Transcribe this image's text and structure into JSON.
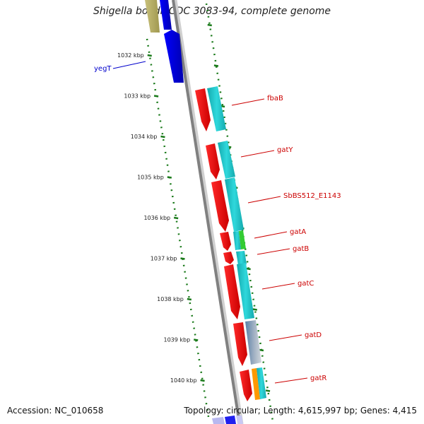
{
  "title": "Shigella boydii CDC 3083-94, complete genome",
  "footer": {
    "accession": "Accession: NC_010658",
    "summary": "Topology: circular; Length: 4,615,997 bp; Genes: 4,415"
  },
  "scale_labels": [
    "1032 kbp",
    "1033 kbp",
    "1034 kbp",
    "1035 kbp",
    "1036 kbp",
    "1037 kbp",
    "1038 kbp",
    "1039 kbp",
    "1040 kbp"
  ],
  "genes": [
    {
      "name": "yegT",
      "color": "#0000cc"
    },
    {
      "name": "fbaB",
      "color": "#cc0000"
    },
    {
      "name": "gatY",
      "color": "#cc0000"
    },
    {
      "name": "SbBS512_E1143",
      "color": "#cc0000"
    },
    {
      "name": "gatA",
      "color": "#cc0000"
    },
    {
      "name": "gatB",
      "color": "#cc0000"
    },
    {
      "name": "gatC",
      "color": "#cc0000"
    },
    {
      "name": "gatD",
      "color": "#cc0000"
    },
    {
      "name": "gatR",
      "color": "#cc0000"
    }
  ],
  "colors": {
    "cds": "#ee0000",
    "cds_alt": "#1fc4c8",
    "forward_blue": "#0000e0",
    "olive": "#b5ad6a",
    "green": "#33cc33",
    "steel": "#5b80a8",
    "orange": "#ff9900",
    "backbone": "#808080",
    "tick": "#1a7a1a"
  }
}
